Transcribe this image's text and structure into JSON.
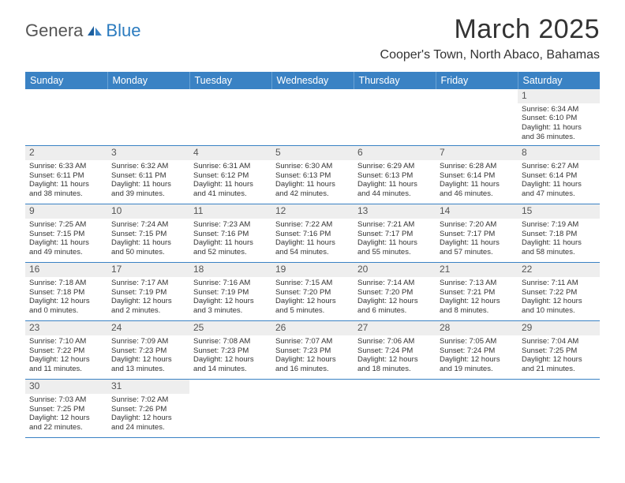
{
  "logo": {
    "part1": "Genera",
    "part2": "Blue"
  },
  "title": "March 2025",
  "location": "Cooper's Town, North Abaco, Bahamas",
  "colors": {
    "header_bg": "#3a82c4",
    "header_text": "#ffffff",
    "daynum_bg": "#eeeeee",
    "border": "#3a82c4",
    "logo_blue": "#2b7bbf"
  },
  "weekdays": [
    "Sunday",
    "Monday",
    "Tuesday",
    "Wednesday",
    "Thursday",
    "Friday",
    "Saturday"
  ],
  "weeks": [
    [
      {
        "n": "",
        "sr": "",
        "ss": "",
        "dl": ""
      },
      {
        "n": "",
        "sr": "",
        "ss": "",
        "dl": ""
      },
      {
        "n": "",
        "sr": "",
        "ss": "",
        "dl": ""
      },
      {
        "n": "",
        "sr": "",
        "ss": "",
        "dl": ""
      },
      {
        "n": "",
        "sr": "",
        "ss": "",
        "dl": ""
      },
      {
        "n": "",
        "sr": "",
        "ss": "",
        "dl": ""
      },
      {
        "n": "1",
        "sr": "Sunrise: 6:34 AM",
        "ss": "Sunset: 6:10 PM",
        "dl": "Daylight: 11 hours and 36 minutes."
      }
    ],
    [
      {
        "n": "2",
        "sr": "Sunrise: 6:33 AM",
        "ss": "Sunset: 6:11 PM",
        "dl": "Daylight: 11 hours and 38 minutes."
      },
      {
        "n": "3",
        "sr": "Sunrise: 6:32 AM",
        "ss": "Sunset: 6:11 PM",
        "dl": "Daylight: 11 hours and 39 minutes."
      },
      {
        "n": "4",
        "sr": "Sunrise: 6:31 AM",
        "ss": "Sunset: 6:12 PM",
        "dl": "Daylight: 11 hours and 41 minutes."
      },
      {
        "n": "5",
        "sr": "Sunrise: 6:30 AM",
        "ss": "Sunset: 6:13 PM",
        "dl": "Daylight: 11 hours and 42 minutes."
      },
      {
        "n": "6",
        "sr": "Sunrise: 6:29 AM",
        "ss": "Sunset: 6:13 PM",
        "dl": "Daylight: 11 hours and 44 minutes."
      },
      {
        "n": "7",
        "sr": "Sunrise: 6:28 AM",
        "ss": "Sunset: 6:14 PM",
        "dl": "Daylight: 11 hours and 46 minutes."
      },
      {
        "n": "8",
        "sr": "Sunrise: 6:27 AM",
        "ss": "Sunset: 6:14 PM",
        "dl": "Daylight: 11 hours and 47 minutes."
      }
    ],
    [
      {
        "n": "9",
        "sr": "Sunrise: 7:25 AM",
        "ss": "Sunset: 7:15 PM",
        "dl": "Daylight: 11 hours and 49 minutes."
      },
      {
        "n": "10",
        "sr": "Sunrise: 7:24 AM",
        "ss": "Sunset: 7:15 PM",
        "dl": "Daylight: 11 hours and 50 minutes."
      },
      {
        "n": "11",
        "sr": "Sunrise: 7:23 AM",
        "ss": "Sunset: 7:16 PM",
        "dl": "Daylight: 11 hours and 52 minutes."
      },
      {
        "n": "12",
        "sr": "Sunrise: 7:22 AM",
        "ss": "Sunset: 7:16 PM",
        "dl": "Daylight: 11 hours and 54 minutes."
      },
      {
        "n": "13",
        "sr": "Sunrise: 7:21 AM",
        "ss": "Sunset: 7:17 PM",
        "dl": "Daylight: 11 hours and 55 minutes."
      },
      {
        "n": "14",
        "sr": "Sunrise: 7:20 AM",
        "ss": "Sunset: 7:17 PM",
        "dl": "Daylight: 11 hours and 57 minutes."
      },
      {
        "n": "15",
        "sr": "Sunrise: 7:19 AM",
        "ss": "Sunset: 7:18 PM",
        "dl": "Daylight: 11 hours and 58 minutes."
      }
    ],
    [
      {
        "n": "16",
        "sr": "Sunrise: 7:18 AM",
        "ss": "Sunset: 7:18 PM",
        "dl": "Daylight: 12 hours and 0 minutes."
      },
      {
        "n": "17",
        "sr": "Sunrise: 7:17 AM",
        "ss": "Sunset: 7:19 PM",
        "dl": "Daylight: 12 hours and 2 minutes."
      },
      {
        "n": "18",
        "sr": "Sunrise: 7:16 AM",
        "ss": "Sunset: 7:19 PM",
        "dl": "Daylight: 12 hours and 3 minutes."
      },
      {
        "n": "19",
        "sr": "Sunrise: 7:15 AM",
        "ss": "Sunset: 7:20 PM",
        "dl": "Daylight: 12 hours and 5 minutes."
      },
      {
        "n": "20",
        "sr": "Sunrise: 7:14 AM",
        "ss": "Sunset: 7:20 PM",
        "dl": "Daylight: 12 hours and 6 minutes."
      },
      {
        "n": "21",
        "sr": "Sunrise: 7:13 AM",
        "ss": "Sunset: 7:21 PM",
        "dl": "Daylight: 12 hours and 8 minutes."
      },
      {
        "n": "22",
        "sr": "Sunrise: 7:11 AM",
        "ss": "Sunset: 7:22 PM",
        "dl": "Daylight: 12 hours and 10 minutes."
      }
    ],
    [
      {
        "n": "23",
        "sr": "Sunrise: 7:10 AM",
        "ss": "Sunset: 7:22 PM",
        "dl": "Daylight: 12 hours and 11 minutes."
      },
      {
        "n": "24",
        "sr": "Sunrise: 7:09 AM",
        "ss": "Sunset: 7:23 PM",
        "dl": "Daylight: 12 hours and 13 minutes."
      },
      {
        "n": "25",
        "sr": "Sunrise: 7:08 AM",
        "ss": "Sunset: 7:23 PM",
        "dl": "Daylight: 12 hours and 14 minutes."
      },
      {
        "n": "26",
        "sr": "Sunrise: 7:07 AM",
        "ss": "Sunset: 7:23 PM",
        "dl": "Daylight: 12 hours and 16 minutes."
      },
      {
        "n": "27",
        "sr": "Sunrise: 7:06 AM",
        "ss": "Sunset: 7:24 PM",
        "dl": "Daylight: 12 hours and 18 minutes."
      },
      {
        "n": "28",
        "sr": "Sunrise: 7:05 AM",
        "ss": "Sunset: 7:24 PM",
        "dl": "Daylight: 12 hours and 19 minutes."
      },
      {
        "n": "29",
        "sr": "Sunrise: 7:04 AM",
        "ss": "Sunset: 7:25 PM",
        "dl": "Daylight: 12 hours and 21 minutes."
      }
    ],
    [
      {
        "n": "30",
        "sr": "Sunrise: 7:03 AM",
        "ss": "Sunset: 7:25 PM",
        "dl": "Daylight: 12 hours and 22 minutes."
      },
      {
        "n": "31",
        "sr": "Sunrise: 7:02 AM",
        "ss": "Sunset: 7:26 PM",
        "dl": "Daylight: 12 hours and 24 minutes."
      },
      {
        "n": "",
        "sr": "",
        "ss": "",
        "dl": ""
      },
      {
        "n": "",
        "sr": "",
        "ss": "",
        "dl": ""
      },
      {
        "n": "",
        "sr": "",
        "ss": "",
        "dl": ""
      },
      {
        "n": "",
        "sr": "",
        "ss": "",
        "dl": ""
      },
      {
        "n": "",
        "sr": "",
        "ss": "",
        "dl": ""
      }
    ]
  ]
}
